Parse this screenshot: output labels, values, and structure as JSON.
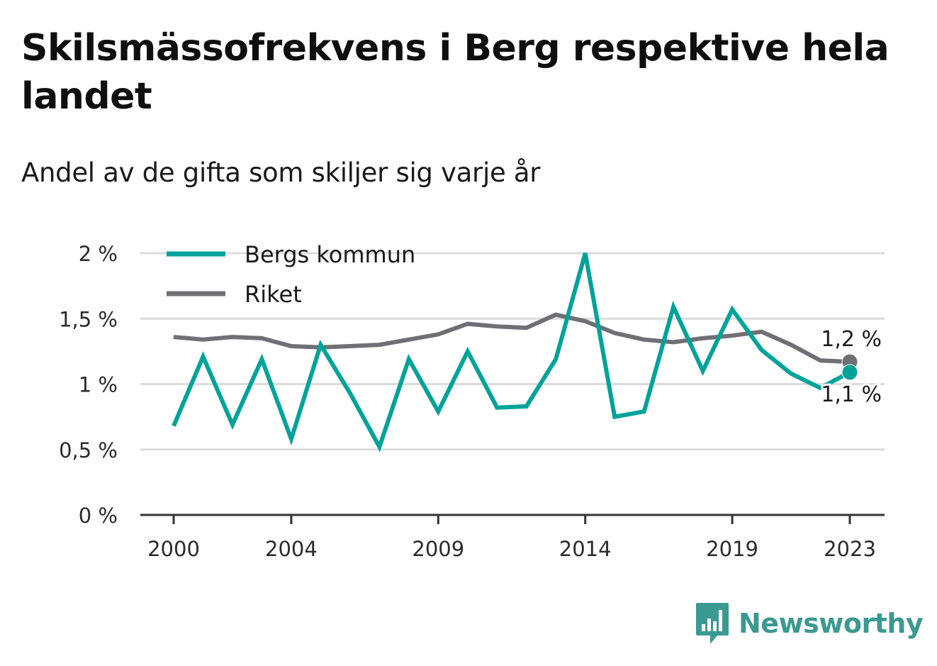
{
  "title": "Skilsmässofrekvens i Berg respektive hela landet",
  "subtitle": "Andel av de gifta som skiljer sig varje år",
  "brand": {
    "name": "Newsworthy",
    "icon": "bar-chart-bubble-icon"
  },
  "colors": {
    "berg": "#00a39a",
    "riket": "#6f6f75",
    "grid": "#dcdcdc",
    "axis": "#333333",
    "brand": "#3a9a91"
  },
  "chart_data": {
    "type": "line",
    "title": "Skilsmässofrekvens i Berg respektive hela landet",
    "subtitle": "Andel av de gifta som skiljer sig varje år",
    "x": [
      2000,
      2001,
      2002,
      2003,
      2004,
      2005,
      2006,
      2007,
      2008,
      2009,
      2010,
      2011,
      2012,
      2013,
      2014,
      2015,
      2016,
      2017,
      2018,
      2019,
      2020,
      2021,
      2022,
      2023
    ],
    "x_ticks": [
      "2000",
      "2004",
      "2009",
      "2014",
      "2019",
      "2023"
    ],
    "y_ticks": [
      "0 %",
      "0,5 %",
      "1 %",
      "1,5 %",
      "2 %"
    ],
    "ylim": [
      0,
      2
    ],
    "grid": true,
    "legend_position": "top-left",
    "series": [
      {
        "name": "Bergs kommun",
        "values": [
          0.68,
          1.21,
          0.69,
          1.19,
          0.58,
          1.3,
          0.93,
          0.52,
          1.19,
          0.79,
          1.25,
          0.82,
          0.83,
          1.19,
          2.0,
          0.75,
          0.79,
          1.59,
          1.1,
          1.57,
          1.26,
          1.08,
          0.97,
          1.09
        ],
        "end_label": "1,1 %"
      },
      {
        "name": "Riket",
        "values": [
          1.36,
          1.34,
          1.36,
          1.35,
          1.29,
          1.28,
          1.29,
          1.3,
          1.34,
          1.38,
          1.46,
          1.44,
          1.43,
          1.53,
          1.48,
          1.39,
          1.34,
          1.32,
          1.35,
          1.37,
          1.4,
          1.3,
          1.18,
          1.17
        ],
        "end_label": "1,2 %"
      }
    ]
  }
}
